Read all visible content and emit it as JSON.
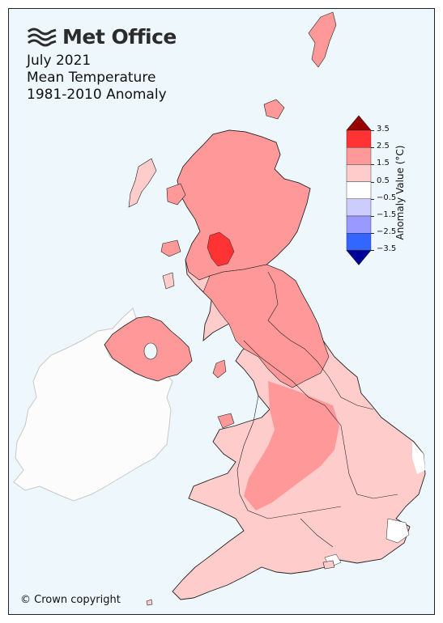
{
  "brand": {
    "name": "Met Office",
    "logo_icon": "met-office-wave-logo"
  },
  "titles": {
    "line1": "July 2021",
    "line2": "Mean Temperature",
    "line3": "1981-2010 Anomaly"
  },
  "copyright": "© Crown copyright",
  "legend": {
    "title": "Anomaly Value (°C)",
    "ticks": [
      "3.5",
      "2.5",
      "1.5",
      "0.5",
      "−0.5",
      "−1.5",
      "−2.5",
      "−3.5"
    ],
    "bins": [
      {
        "range": ">3.5",
        "color": "#990000"
      },
      {
        "range": "2.5 to 3.5",
        "color": "#ff3333"
      },
      {
        "range": "1.5 to 2.5",
        "color": "#ff9999"
      },
      {
        "range": "0.5 to 1.5",
        "color": "#ffcccc"
      },
      {
        "range": "-0.5 to 0.5",
        "color": "#ffffff"
      },
      {
        "range": "-1.5 to -0.5",
        "color": "#ccccff"
      },
      {
        "range": "-2.5 to -1.5",
        "color": "#9999ff"
      },
      {
        "range": "-3.5 to -2.5",
        "color": "#3366ff"
      },
      {
        "range": "<-3.5",
        "color": "#000099"
      }
    ]
  },
  "map_colors": {
    "sea": "#eef7fb",
    "ireland": "#fcfcfc",
    "anomaly_low": "#ffcccc",
    "anomaly_mid": "#ff9999",
    "anomaly_high": "#ff3333",
    "neutral": "#ffffff"
  }
}
